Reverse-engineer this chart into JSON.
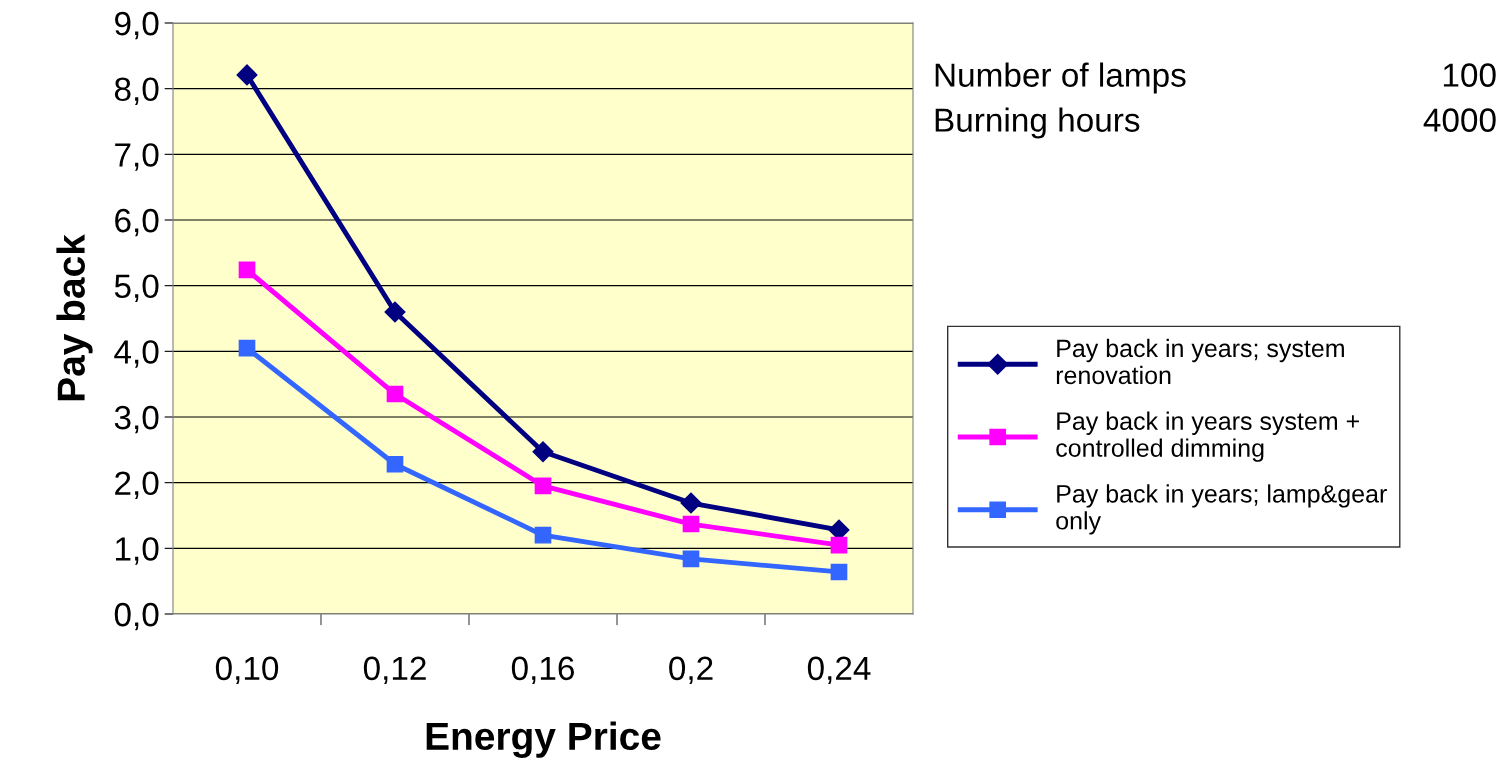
{
  "chart_data": {
    "type": "line",
    "xlabel": "Energy Price",
    "ylabel": "Pay back",
    "categories": [
      "0,10",
      "0,12",
      "0,16",
      "0,2",
      "0,24"
    ],
    "series": [
      {
        "name": "Pay back in years; system\nrenovation",
        "color": "#000080",
        "marker": "diamond",
        "values": [
          8.21,
          4.6,
          2.47,
          1.69,
          1.28
        ]
      },
      {
        "name": "Pay back in years system +\ncontrolled dimming",
        "color": "#ff00ff",
        "marker": "square",
        "values": [
          5.24,
          3.35,
          1.95,
          1.37,
          1.05
        ]
      },
      {
        "name": "Pay back in years; lamp&gear\nonly",
        "color": "#3366ff",
        "marker": "square",
        "values": [
          4.05,
          2.28,
          1.2,
          0.84,
          0.64
        ]
      }
    ],
    "ylim": [
      0,
      9
    ],
    "yticks": [
      {
        "value": 0,
        "label": "0,0"
      },
      {
        "value": 1,
        "label": "1,0"
      },
      {
        "value": 2,
        "label": "2,0"
      },
      {
        "value": 3,
        "label": "3,0"
      },
      {
        "value": 4,
        "label": "4,0"
      },
      {
        "value": 5,
        "label": "5,0"
      },
      {
        "value": 6,
        "label": "6,0"
      },
      {
        "value": 7,
        "label": "7,0"
      },
      {
        "value": 8,
        "label": "8,0"
      },
      {
        "value": 9,
        "label": "9,0"
      }
    ],
    "annotations": [
      "Number of lamps",
      "100",
      "Burning hours",
      "4000"
    ],
    "grid": "y",
    "legend": "right",
    "line_style": "solid"
  }
}
